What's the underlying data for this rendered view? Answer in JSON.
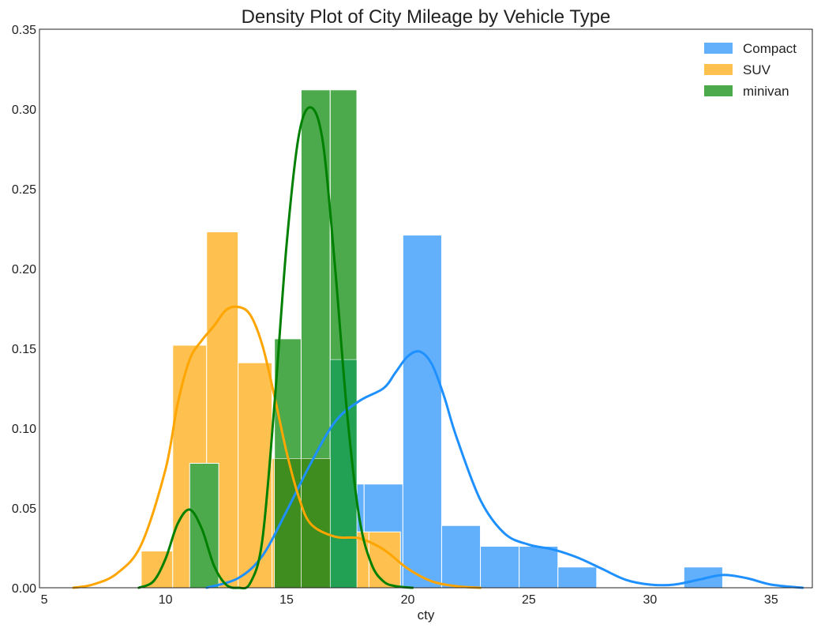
{
  "chart_data": {
    "type": "bar",
    "title": "Density Plot of City Mileage by Vehicle Type",
    "xlabel": "cty",
    "ylabel": "",
    "xlim": [
      4.8,
      36.7
    ],
    "ylim": [
      0,
      0.35
    ],
    "xticks": [
      5,
      10,
      15,
      20,
      25,
      30,
      35
    ],
    "yticks": [
      0.0,
      0.05,
      0.1,
      0.15,
      0.2,
      0.25,
      0.3,
      0.35
    ],
    "ytick_labels": [
      "0.00",
      "0.05",
      "0.10",
      "0.15",
      "0.20",
      "0.25",
      "0.30",
      "0.35"
    ],
    "xtick_labels": [
      "5",
      "10",
      "15",
      "20",
      "25",
      "30",
      "35"
    ],
    "grid": false,
    "legend_position": "top-right",
    "series": [
      {
        "name": "Compact",
        "color": "#1e90ff",
        "hist_color": "#62b0fc",
        "bins": [
          {
            "x0": 15.0,
            "x1": 16.6,
            "value": 0.065
          },
          {
            "x0": 16.6,
            "x1": 18.2,
            "value": 0.065
          },
          {
            "x0": 18.2,
            "x1": 19.8,
            "value": 0.065
          },
          {
            "x0": 19.8,
            "x1": 21.4,
            "value": 0.221
          },
          {
            "x0": 21.4,
            "x1": 23.0,
            "value": 0.039
          },
          {
            "x0": 23.0,
            "x1": 24.6,
            "value": 0.026
          },
          {
            "x0": 24.6,
            "x1": 26.2,
            "value": 0.026
          },
          {
            "x0": 26.2,
            "x1": 27.8,
            "value": 0.013
          },
          {
            "x0": 31.4,
            "x1": 33.0,
            "value": 0.013
          }
        ],
        "kde_x": [
          11.7,
          13.0,
          14.0,
          15.0,
          16.0,
          17.0,
          18.0,
          19.0,
          19.5,
          20.0,
          20.5,
          21.0,
          21.5,
          22.0,
          23.0,
          24.0,
          25.0,
          26.0,
          27.0,
          28.0,
          29.0,
          30.0,
          31.0,
          32.0,
          33.0,
          34.0,
          35.0,
          36.3
        ],
        "kde_y": [
          0.0,
          0.006,
          0.02,
          0.048,
          0.078,
          0.104,
          0.117,
          0.125,
          0.135,
          0.145,
          0.148,
          0.14,
          0.12,
          0.095,
          0.055,
          0.034,
          0.027,
          0.024,
          0.019,
          0.012,
          0.005,
          0.002,
          0.002,
          0.005,
          0.008,
          0.006,
          0.002,
          0.0
        ]
      },
      {
        "name": "SUV",
        "color": "#ffa500",
        "hist_color": "#fec04e",
        "bins": [
          {
            "x0": 9.0,
            "x1": 10.3,
            "value": 0.023
          },
          {
            "x0": 10.3,
            "x1": 11.7,
            "value": 0.152
          },
          {
            "x0": 11.7,
            "x1": 13.0,
            "value": 0.223
          },
          {
            "x0": 13.0,
            "x1": 14.4,
            "value": 0.141
          },
          {
            "x0": 14.4,
            "x1": 15.7,
            "value": 0.081
          },
          {
            "x0": 15.7,
            "x1": 17.0,
            "value": 0.035
          },
          {
            "x0": 17.0,
            "x1": 18.4,
            "value": 0.035
          },
          {
            "x0": 18.4,
            "x1": 19.7,
            "value": 0.035
          }
        ],
        "kde_x": [
          6.2,
          7.0,
          8.0,
          9.0,
          10.0,
          10.5,
          11.0,
          11.5,
          12.0,
          12.5,
          13.0,
          13.5,
          14.0,
          14.5,
          15.0,
          15.5,
          16.0,
          17.0,
          18.0,
          19.0,
          20.0,
          21.0,
          22.0,
          23.0
        ],
        "kde_y": [
          0.0,
          0.002,
          0.009,
          0.027,
          0.074,
          0.115,
          0.143,
          0.155,
          0.164,
          0.174,
          0.176,
          0.171,
          0.152,
          0.12,
          0.085,
          0.057,
          0.04,
          0.032,
          0.031,
          0.024,
          0.012,
          0.004,
          0.001,
          0.0
        ]
      },
      {
        "name": "minivan",
        "color": "#008000",
        "hist_color": "#4caa4c",
        "bins": [
          {
            "x0": 11.0,
            "x1": 12.2,
            "value": 0.078
          },
          {
            "x0": 14.5,
            "x1": 15.6,
            "value": 0.156
          },
          {
            "x0": 15.6,
            "x1": 16.8,
            "value": 0.312
          },
          {
            "x0": 16.8,
            "x1": 17.9,
            "value": 0.312
          }
        ],
        "kde_x": [
          8.9,
          9.5,
          10.0,
          10.5,
          11.0,
          11.5,
          12.0,
          12.5,
          13.0,
          13.5,
          14.0,
          14.5,
          15.0,
          15.5,
          16.0,
          16.5,
          17.0,
          17.5,
          18.0,
          18.5,
          19.0,
          19.5,
          20.2
        ],
        "kde_y": [
          0.0,
          0.004,
          0.018,
          0.04,
          0.049,
          0.037,
          0.014,
          0.002,
          0.0,
          0.003,
          0.03,
          0.115,
          0.215,
          0.283,
          0.301,
          0.279,
          0.201,
          0.109,
          0.044,
          0.015,
          0.004,
          0.001,
          0.0
        ]
      }
    ],
    "overlay_bins": [
      {
        "x0": 16.8,
        "x1": 17.9,
        "value": 0.143,
        "color": "#1e9e55"
      },
      {
        "x0": 15.6,
        "x1": 16.8,
        "value": 0.081,
        "color": "#3d8a1a"
      },
      {
        "x0": 14.5,
        "x1": 15.6,
        "value": 0.081,
        "color": "#3d8a1a"
      }
    ]
  }
}
